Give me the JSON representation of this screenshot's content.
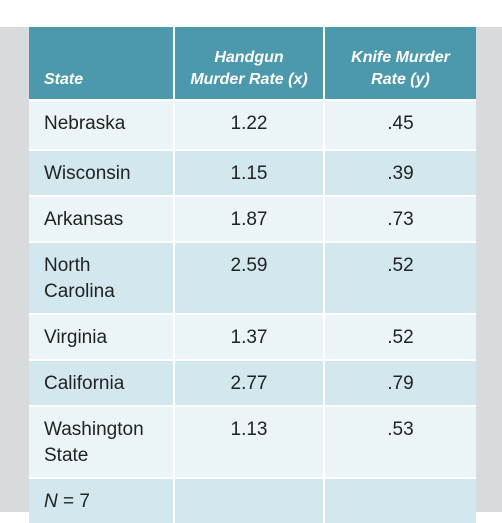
{
  "table": {
    "headers": {
      "state": "State",
      "x_line1": "Handgun",
      "x_line2": "Murder Rate (x)",
      "y_line1": "Knife Murder",
      "y_line2": "Rate (y)"
    },
    "rows": [
      {
        "state": "Nebraska",
        "x": "1.22",
        "y": ".45"
      },
      {
        "state": "Wisconsin",
        "x": "1.15",
        "y": ".39"
      },
      {
        "state": "Arkansas",
        "x": "1.87",
        "y": ".73"
      },
      {
        "state_line1": "North",
        "state_line2": "Carolina",
        "x": "2.59",
        "y": ".52"
      },
      {
        "state": "Virginia",
        "x": "1.37",
        "y": ".52"
      },
      {
        "state": "California",
        "x": "2.77",
        "y": ".79"
      },
      {
        "state_line1": "Washington",
        "state_line2": "State",
        "x": "1.13",
        "y": ".53"
      }
    ],
    "footer": {
      "n_symbol": "N",
      "n_value": " = 7"
    }
  },
  "colors": {
    "header_bg": "#4c98ad",
    "row_light": "#ebf4f7",
    "row_dark": "#d2e8ee",
    "frame_bg": "#d9dadb"
  }
}
